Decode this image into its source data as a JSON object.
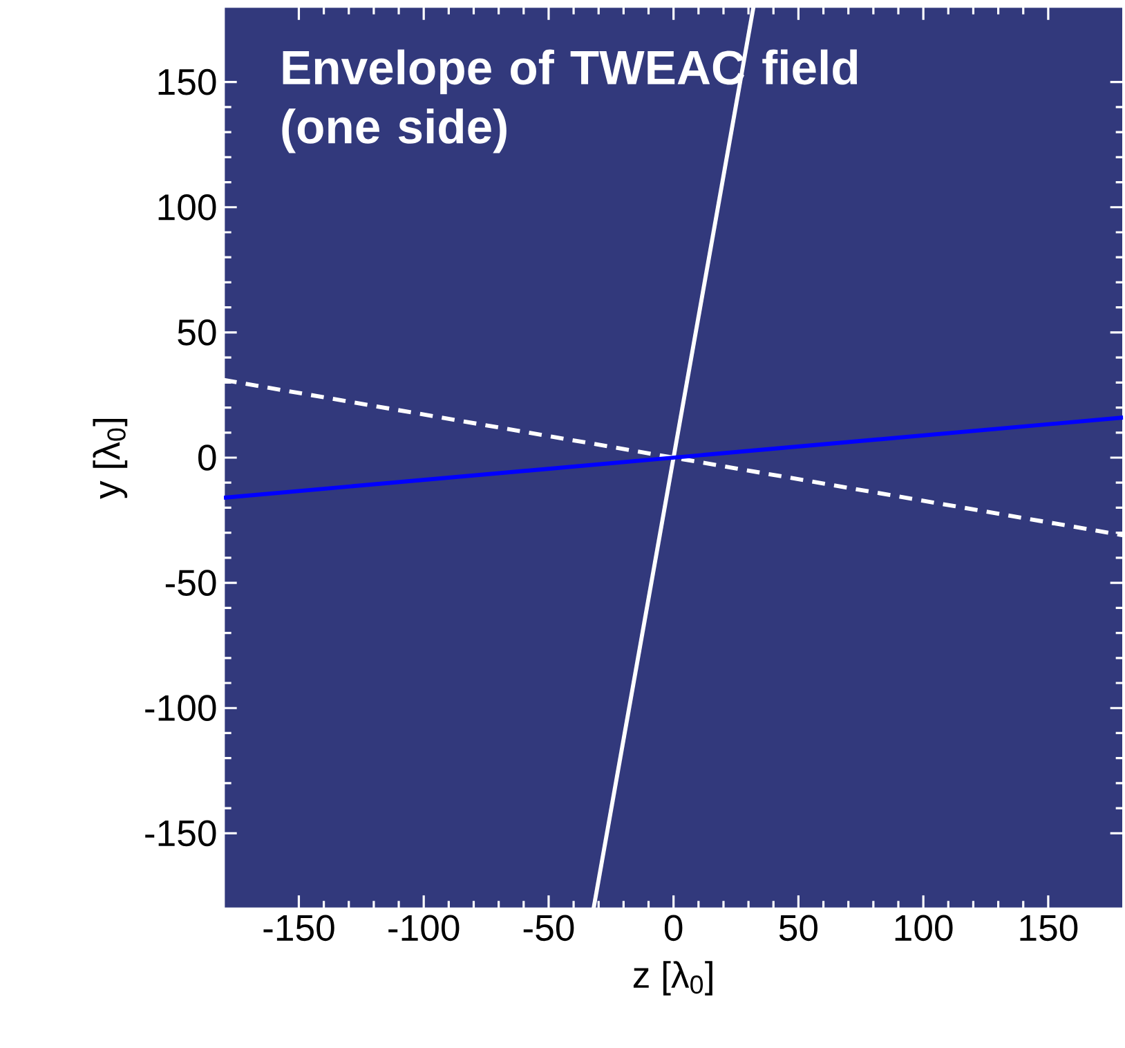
{
  "chart_data": {
    "type": "line",
    "xlabel": "z [λ$_{0}$]",
    "ylabel": "y [λ$_{0}$]",
    "annotations": [
      "Envelope of TWEAC field (one side)"
    ],
    "xlim": [
      -180,
      180
    ],
    "ylim": [
      -180,
      180
    ],
    "xticks": [
      -150,
      -100,
      -50,
      0,
      50,
      100,
      150
    ],
    "yticks": [
      -150,
      -100,
      -50,
      0,
      50,
      100,
      150
    ],
    "grid": false,
    "legend": false,
    "marker": "none",
    "series": [
      {
        "color": "#ffffff",
        "line_style": "solid",
        "x": [
          -32,
          32
        ],
        "values": [
          -180,
          180
        ]
      },
      {
        "color": "#ffffff",
        "line_style": "dashed",
        "x": [
          -180,
          180
        ],
        "values": [
          31,
          -31
        ]
      },
      {
        "color": "#0000ff",
        "line_style": "solid",
        "x": [
          -180,
          180
        ],
        "values": [
          -16,
          16
        ]
      }
    ]
  }
}
